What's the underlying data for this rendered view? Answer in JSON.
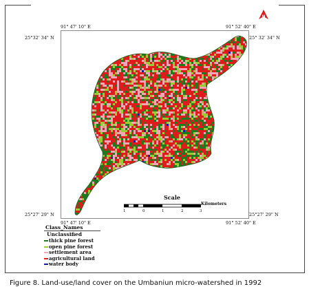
{
  "map": {
    "coordinates": {
      "top_left_lon": "91° 47' 10\" E",
      "top_right_lon": "91° 52' 40\" E",
      "top_left_lat": "25°32' 34\" N",
      "top_right_lat": "25° 32' 34\" N",
      "bottom_left_lat": "25°27' 29\" N",
      "bottom_right_lat": "25°27' 29\" N",
      "bottom_left_lon": "91° 47' 10\" E",
      "bottom_right_lon": "91° 52' 40\" E"
    },
    "north_arrow_label": "N",
    "scale": {
      "title": "Scale",
      "units": "Kilometers",
      "ticks": [
        "1",
        "0",
        "1",
        "2",
        "3"
      ]
    },
    "legend": {
      "title": "Class_Names",
      "unclassified": "Unclassified",
      "items": [
        {
          "label": "thick pine forest",
          "color": "#1f7a1f"
        },
        {
          "label": "open pine forest",
          "color": "#9acd32"
        },
        {
          "label": "settlement area",
          "color": "#f4a6b8"
        },
        {
          "label": "agricultural land",
          "color": "#e01b1b"
        },
        {
          "label": "water body",
          "color": "#1a1aa6"
        }
      ]
    },
    "colors": {
      "thick_pine_forest": "#1f7a1f",
      "open_pine_forest": "#9acd32",
      "settlement_area": "#f4a6b8",
      "agricultural_land": "#e01b1b",
      "water_body": "#1a1aa6"
    }
  },
  "caption": {
    "text": "Figure 8.  Land-use/land cover on the Umbaniun micro-watershed in 1992"
  }
}
